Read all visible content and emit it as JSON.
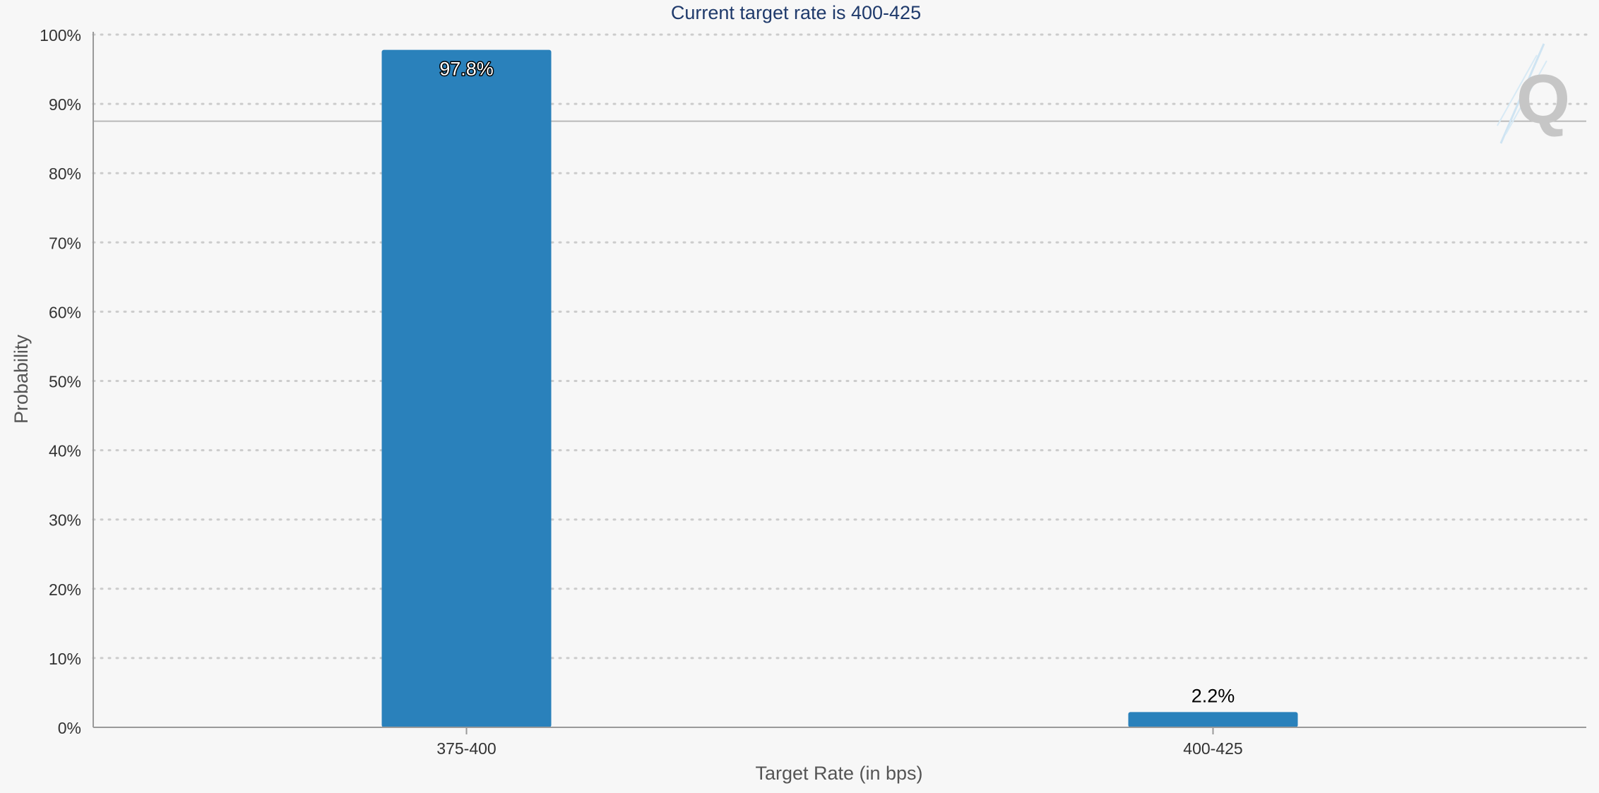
{
  "chart_data": {
    "type": "bar",
    "title": "Current target rate is 400-425",
    "xlabel": "Target Rate (in bps)",
    "ylabel": "Probability",
    "categories": [
      "375-400",
      "400-425"
    ],
    "values": [
      97.8,
      2.2
    ],
    "data_labels": [
      "97.8%",
      "2.2%"
    ],
    "ylim": [
      0,
      100
    ],
    "y_ticks": [
      0,
      10,
      20,
      30,
      40,
      50,
      60,
      70,
      80,
      90,
      100
    ],
    "y_tick_labels": [
      "0%",
      "10%",
      "20%",
      "30%",
      "40%",
      "50%",
      "60%",
      "70%",
      "80%",
      "90%",
      "100%"
    ],
    "reference_line": 87.5,
    "grid": true,
    "legend": "none",
    "colors": {
      "bar": "#2a81bb",
      "title": "#1f3a6b",
      "axis_text": "#333333",
      "label_text": "#555555",
      "grid": "#cccccc",
      "axis": "#9a9a9a",
      "reference": "#b8b8b8"
    }
  },
  "watermark": {
    "icon": "q-logo-icon",
    "text": "Q"
  }
}
